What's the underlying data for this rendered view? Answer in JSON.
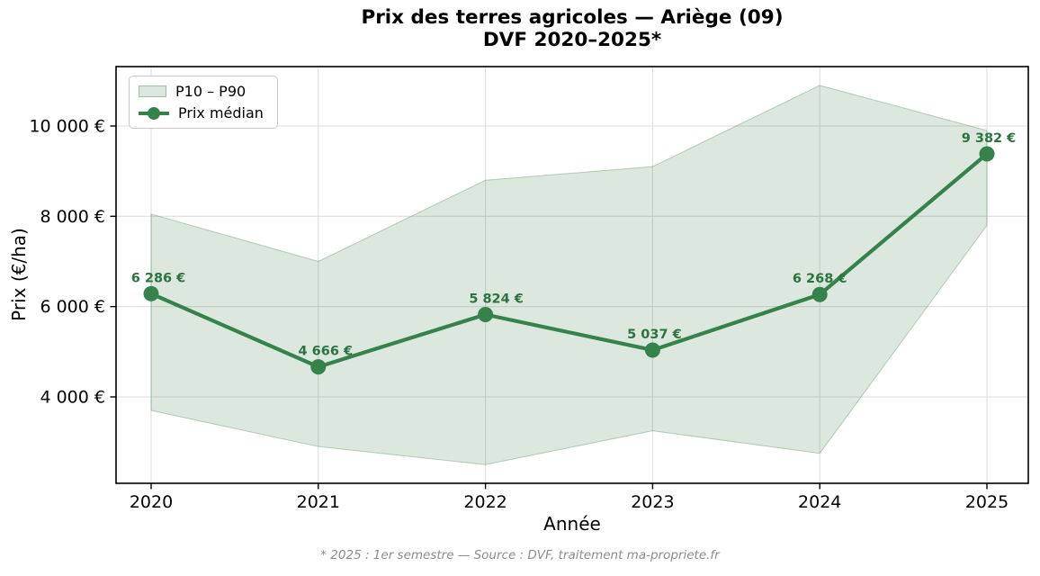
{
  "title": {
    "line1": "Prix des terres agricoles — Ariège (09)",
    "line2": "DVF 2020–2025*"
  },
  "footnote": "* 2025 : 1er semestre — Source : DVF, traitement ma-propriete.fr",
  "legend": {
    "band_label": "P10 – P90",
    "median_label": "Prix médian"
  },
  "colors": {
    "line": "#35824a",
    "marker": "#35824a",
    "point_label": "#2c7340",
    "band_fill": "rgba(70,130,76,0.19)",
    "band_edge": "rgba(70,130,76,0.35)",
    "grid": "#dedede",
    "frame": "#000000",
    "footnote": "#8c8c8c"
  },
  "chart_data": {
    "type": "line",
    "title": "Prix des terres agricoles — Ariège (09)\nDVF 2020–2025*",
    "xlabel": "Année",
    "ylabel": "Prix (€/ha)",
    "x": [
      2020,
      2021,
      2022,
      2023,
      2024,
      2025
    ],
    "x_tick_labels": [
      "2020",
      "2021",
      "2022",
      "2023",
      "2024",
      "2025"
    ],
    "y_ticks": [
      4000,
      6000,
      8000,
      10000
    ],
    "y_tick_labels": [
      "4 000 €",
      "6 000 €",
      "8 000 €",
      "10 000 €"
    ],
    "ylim": [
      2060,
      11320
    ],
    "grid": true,
    "legend_position": "upper-left",
    "series": [
      {
        "name": "Prix médian",
        "role": "median-line",
        "values": [
          6286,
          4666,
          5824,
          5037,
          6268,
          9382
        ],
        "point_labels": [
          "6 286 €",
          "4 666 €",
          "5 824 €",
          "5 037 €",
          "6 268 €",
          "9 382 €"
        ]
      },
      {
        "name": "P90",
        "role": "band-upper",
        "values": [
          8050,
          7000,
          8800,
          9100,
          10900,
          9900
        ]
      },
      {
        "name": "P10",
        "role": "band-lower",
        "values": [
          3700,
          2900,
          2500,
          3250,
          2750,
          7800
        ]
      }
    ],
    "band_legend_label": "P10 – P90"
  }
}
